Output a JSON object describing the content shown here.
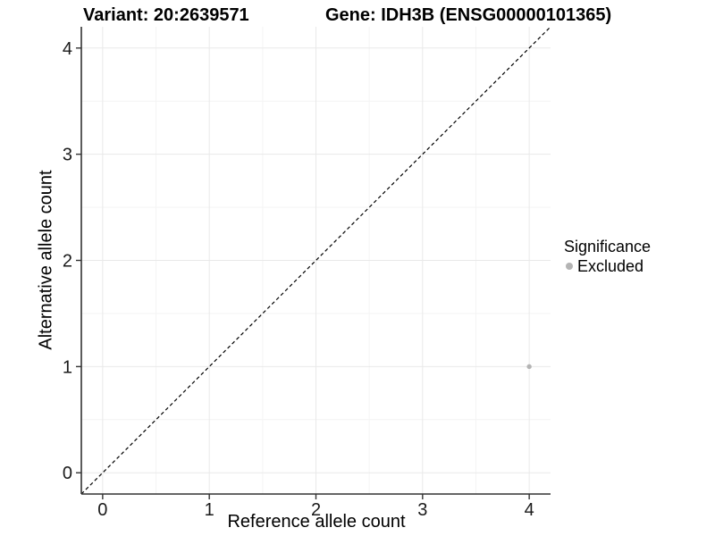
{
  "chart_data": {
    "type": "scatter",
    "title_left": "Variant: 20:2639571",
    "title_right": "Gene: IDH3B (ENSG00000101365)",
    "xlabel": "Reference allele count",
    "ylabel": "Alternative allele count",
    "xlim": [
      -0.2,
      4.2
    ],
    "ylim": [
      -0.2,
      4.2
    ],
    "x_ticks": [
      0,
      1,
      2,
      3,
      4
    ],
    "y_ticks": [
      0,
      1,
      2,
      3,
      4
    ],
    "x_minor_ticks": [
      0.5,
      1.5,
      2.5,
      3.5
    ],
    "y_minor_ticks": [
      0.5,
      1.5,
      2.5,
      3.5
    ],
    "grid": "major+minor",
    "reference_line": {
      "type": "identity y=x",
      "style": "dashed",
      "color": "#000000"
    },
    "series": [
      {
        "name": "Excluded",
        "color": "#b4b4b4",
        "points": [
          {
            "x": 4,
            "y": 1
          }
        ]
      }
    ],
    "legend": {
      "title": "Significance",
      "position": "right",
      "items": [
        {
          "label": "Excluded",
          "color": "#b4b4b4"
        }
      ]
    }
  },
  "colors": {
    "background": "#ffffff",
    "axis_line": "#333333",
    "tick_text": "#1a1a1a",
    "grid_major": "#e9e9e9",
    "grid_minor": "#f4f4f4",
    "reference_line": "#000000",
    "excluded_point": "#b4b4b4"
  }
}
